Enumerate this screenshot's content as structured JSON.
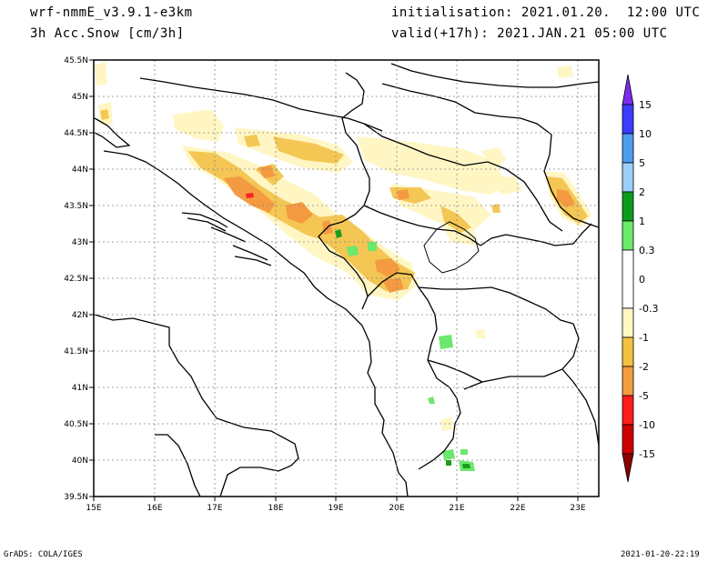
{
  "header": {
    "model": "wrf-nmmE_v3.9.1-e3km",
    "field": "3h Acc.Snow [cm/3h]",
    "init": "initialisation: 2021.01.20.  12:00 UTC",
    "valid": "valid(+17h): 2021.JAN.21 05:00 UTC"
  },
  "footer": {
    "left": "GrADS: COLA/IGES",
    "right": "2021-01-20-22:19"
  },
  "axes": {
    "x_ticks": [
      "15E",
      "16E",
      "17E",
      "18E",
      "19E",
      "20E",
      "21E",
      "22E",
      "23E"
    ],
    "y_ticks": [
      "39.5N",
      "40N",
      "40.5N",
      "41N",
      "41.5N",
      "42N",
      "42.5N",
      "43N",
      "43.5N",
      "44N",
      "44.5N",
      "45N",
      "45.5N"
    ]
  },
  "colorbar": {
    "labels": [
      "15",
      "10",
      "5",
      "2",
      "1",
      "0.3",
      "0",
      "-0.3",
      "-1",
      "-2",
      "-5",
      "-10",
      "-15"
    ],
    "colors": [
      "#7c2cf0",
      "#3c3cff",
      "#4c9cf0",
      "#9ccff8",
      "#0c9c1c",
      "#6ce86c",
      "#ffffff",
      "#fff8c4",
      "#f4c040",
      "#f49c40",
      "#ff1c1c",
      "#cc0000",
      "#8c0000"
    ]
  },
  "colors": {
    "pale": "#fff6c4",
    "yellow": "#f4c654",
    "orange": "#f49a40",
    "red": "#ff2020",
    "green_light": "#6ce86c",
    "green_dark": "#1c9c1c"
  }
}
